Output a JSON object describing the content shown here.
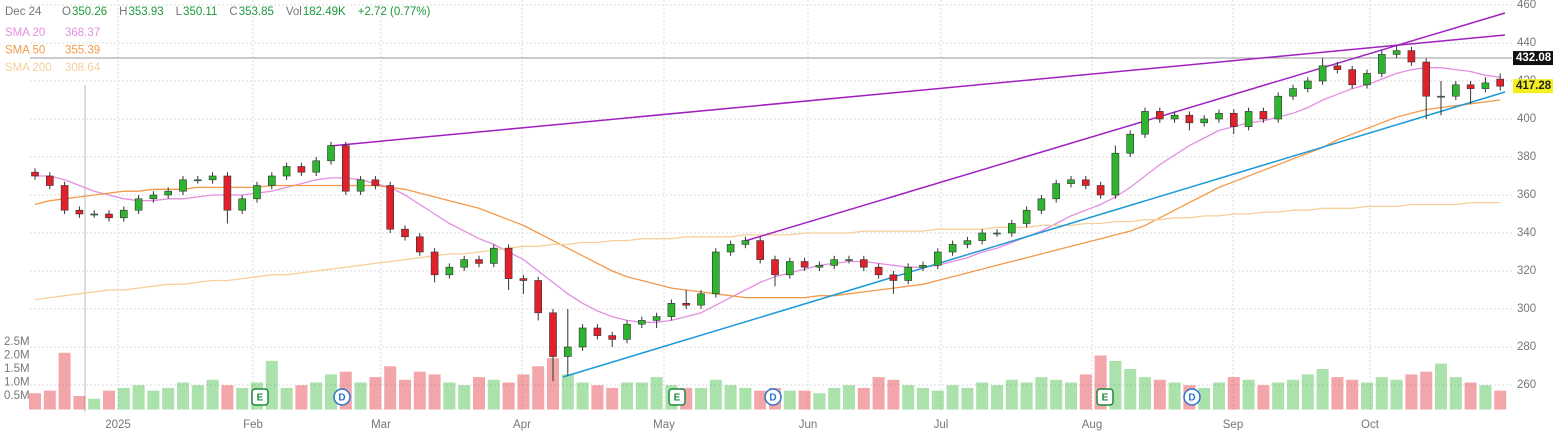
{
  "chart_data": {
    "type": "candlestick",
    "header": [
      {
        "label": "O",
        "value": "350.26"
      },
      {
        "label": "H",
        "value": "353.93"
      },
      {
        "label": "L",
        "value": "350.11"
      },
      {
        "label": "C",
        "value": "353.85"
      },
      {
        "label": "Vol",
        "value": "182.49K"
      }
    ],
    "header_date": "Dec 24",
    "header_change": "+2.72 (0.77%)",
    "up_color": "#2db52d",
    "down_color": "#e0202a",
    "open": [
      372,
      370,
      365,
      352,
      350,
      350,
      348,
      352,
      358,
      360,
      362,
      368,
      368,
      370,
      352,
      358,
      365,
      370,
      375,
      372,
      378,
      386,
      362,
      368,
      365,
      342,
      338,
      330,
      318,
      322,
      326,
      324,
      332,
      316,
      315,
      298,
      275,
      280,
      290,
      286,
      284,
      292,
      294,
      296,
      303,
      302,
      308,
      330,
      334,
      336,
      326,
      318,
      325,
      322,
      323,
      326,
      326,
      322,
      318,
      315,
      322,
      323,
      330,
      334,
      336,
      340,
      340,
      345,
      352,
      358,
      366,
      368,
      365,
      360,
      382,
      392,
      404,
      400,
      402,
      398,
      400,
      403,
      396,
      404,
      400,
      412,
      416,
      420,
      428,
      426,
      418,
      424,
      434,
      436,
      430,
      412,
      412,
      418,
      416,
      421
    ],
    "high": [
      374,
      372,
      367,
      354,
      352,
      352,
      354,
      360,
      362,
      364,
      370,
      370,
      372,
      372,
      360,
      367,
      372,
      377,
      377,
      380,
      388,
      388,
      370,
      370,
      367,
      344,
      340,
      332,
      324,
      328,
      328,
      334,
      334,
      318,
      317,
      300,
      300,
      292,
      292,
      288,
      294,
      296,
      298,
      305,
      310,
      310,
      332,
      336,
      338,
      338,
      328,
      327,
      327,
      325,
      328,
      328,
      328,
      324,
      320,
      324,
      325,
      332,
      336,
      338,
      342,
      342,
      347,
      354,
      360,
      368,
      370,
      370,
      367,
      386,
      394,
      406,
      406,
      404,
      404,
      402,
      405,
      405,
      406,
      406,
      414,
      418,
      422,
      432,
      430,
      428,
      426,
      436,
      439,
      438,
      432,
      420,
      420,
      420,
      422,
      424
    ],
    "low": [
      368,
      363,
      350,
      348,
      348,
      346,
      346,
      350,
      356,
      358,
      360,
      366,
      366,
      345,
      350,
      356,
      363,
      368,
      370,
      370,
      376,
      360,
      360,
      363,
      340,
      336,
      328,
      314,
      316,
      320,
      322,
      322,
      310,
      308,
      294,
      262,
      265,
      278,
      284,
      280,
      282,
      290,
      290,
      294,
      300,
      300,
      306,
      328,
      332,
      324,
      312,
      316,
      320,
      320,
      321,
      324,
      320,
      316,
      308,
      313,
      320,
      321,
      328,
      332,
      334,
      338,
      338,
      343,
      350,
      356,
      364,
      363,
      358,
      358,
      380,
      390,
      398,
      398,
      394,
      396,
      398,
      392,
      394,
      398,
      398,
      410,
      414,
      418,
      424,
      416,
      416,
      422,
      432,
      428,
      400,
      402,
      410,
      408,
      414,
      415
    ],
    "close": [
      370,
      365,
      352,
      350,
      350,
      348,
      352,
      358,
      360,
      362,
      368,
      368,
      370,
      352,
      358,
      365,
      370,
      375,
      372,
      378,
      386,
      362,
      368,
      365,
      342,
      338,
      330,
      318,
      322,
      326,
      324,
      332,
      316,
      315,
      298,
      275,
      280,
      290,
      286,
      284,
      292,
      294,
      296,
      303,
      302,
      308,
      330,
      334,
      336,
      326,
      318,
      325,
      322,
      323,
      326,
      326,
      322,
      318,
      315,
      322,
      323,
      330,
      334,
      336,
      340,
      340,
      345,
      352,
      358,
      366,
      368,
      365,
      360,
      382,
      392,
      404,
      400,
      402,
      398,
      400,
      403,
      396,
      404,
      400,
      412,
      416,
      420,
      428,
      426,
      418,
      424,
      434,
      436,
      430,
      412,
      412,
      418,
      416,
      419,
      417.28
    ],
    "volume": [
      0.6,
      0.7,
      2.1,
      0.5,
      0.4,
      0.7,
      0.8,
      0.9,
      0.7,
      0.8,
      1.0,
      0.9,
      1.1,
      0.9,
      0.8,
      1.0,
      1.8,
      0.8,
      0.9,
      1.0,
      1.3,
      1.4,
      1.0,
      1.2,
      1.6,
      1.1,
      1.4,
      1.3,
      1.0,
      0.9,
      1.2,
      1.1,
      1.0,
      1.3,
      1.6,
      1.9,
      1.3,
      1.0,
      0.9,
      0.8,
      1.0,
      1.0,
      1.2,
      0.9,
      0.8,
      0.8,
      1.1,
      0.9,
      0.8,
      0.7,
      0.8,
      0.7,
      0.7,
      0.6,
      0.8,
      0.9,
      0.8,
      1.2,
      1.1,
      0.9,
      0.8,
      0.7,
      0.9,
      0.8,
      1.0,
      0.9,
      1.1,
      1.0,
      1.2,
      1.1,
      1.0,
      1.3,
      2.0,
      1.8,
      1.5,
      1.2,
      1.1,
      1.0,
      0.9,
      0.8,
      1.0,
      1.2,
      1.1,
      0.9,
      1.0,
      1.1,
      1.3,
      1.5,
      1.2,
      1.1,
      1.0,
      1.2,
      1.1,
      1.3,
      1.4,
      1.7,
      1.2,
      1.0,
      0.9,
      0.7
    ],
    "series": [
      {
        "name": "SMA 20",
        "legend_value": "368.37",
        "color": "#e58fe0",
        "values": [
          370,
          370,
          368,
          365,
          362,
          360,
          358,
          357,
          357,
          358,
          358,
          359,
          360,
          360,
          360,
          361,
          362,
          364,
          366,
          368,
          369,
          369,
          368,
          366,
          364,
          360,
          355,
          350,
          345,
          341,
          337,
          334,
          330,
          326,
          320,
          314,
          308,
          303,
          299,
          296,
          294,
          293,
          293,
          294,
          296,
          298,
          302,
          306,
          310,
          314,
          317,
          319,
          321,
          323,
          324,
          325,
          325,
          324,
          323,
          322,
          322,
          323,
          325,
          327,
          330,
          332,
          335,
          338,
          341,
          345,
          349,
          352,
          355,
          359,
          364,
          370,
          376,
          381,
          386,
          390,
          394,
          396,
          398,
          399,
          401,
          403,
          406,
          410,
          413,
          416,
          418,
          421,
          424,
          426,
          427,
          427,
          426,
          425,
          423,
          422
        ]
      },
      {
        "name": "SMA 50",
        "legend_value": "355.39",
        "color": "#f39a4a",
        "values": [
          355,
          357,
          358,
          359,
          360,
          361,
          362,
          362,
          363,
          363,
          363,
          364,
          364,
          364,
          364,
          364,
          365,
          365,
          365,
          365,
          365,
          365,
          365,
          365,
          364,
          363,
          361,
          359,
          357,
          355,
          353,
          350,
          347,
          344,
          340,
          336,
          332,
          328,
          324,
          320,
          317,
          315,
          313,
          311,
          310,
          309,
          308,
          307,
          306,
          306,
          306,
          306,
          306,
          307,
          307,
          308,
          309,
          310,
          311,
          312,
          313,
          315,
          317,
          319,
          321,
          323,
          325,
          327,
          329,
          331,
          333,
          335,
          337,
          339,
          341,
          344,
          348,
          352,
          356,
          360,
          364,
          367,
          370,
          373,
          376,
          379,
          382,
          385,
          389,
          392,
          395,
          398,
          401,
          403,
          405,
          406,
          407,
          408,
          409,
          410
        ]
      },
      {
        "name": "SMA 200",
        "legend_value": "308.64",
        "color": "#f7cf9a",
        "values": [
          305,
          306,
          307,
          308,
          309,
          310,
          310,
          311,
          312,
          313,
          313,
          314,
          315,
          315,
          316,
          317,
          318,
          318,
          319,
          320,
          321,
          322,
          323,
          324,
          325,
          326,
          327,
          328,
          329,
          329,
          330,
          331,
          332,
          333,
          333,
          334,
          334,
          335,
          335,
          336,
          336,
          337,
          337,
          337,
          338,
          338,
          338,
          338,
          339,
          339,
          339,
          339,
          340,
          340,
          340,
          340,
          341,
          341,
          341,
          341,
          341,
          342,
          342,
          342,
          342,
          343,
          343,
          343,
          344,
          344,
          344,
          345,
          345,
          346,
          346,
          347,
          347,
          348,
          348,
          349,
          349,
          350,
          350,
          351,
          351,
          352,
          352,
          353,
          353,
          353,
          354,
          354,
          354,
          355,
          355,
          355,
          355,
          356,
          356,
          356
        ]
      }
    ],
    "ylim": [
      250,
      462.6
    ],
    "yticks": [
      260,
      280,
      300,
      320,
      340,
      360,
      380,
      400,
      420,
      440,
      460
    ],
    "grid": true,
    "volume_ylim": [
      0,
      2.8
    ],
    "volume_ticks": [
      {
        "value": 0.5,
        "label": "0.5M"
      },
      {
        "value": 1.0,
        "label": "1.0M"
      },
      {
        "value": 1.5,
        "label": "1.5M"
      },
      {
        "value": 2.0,
        "label": "2.0M"
      },
      {
        "value": 2.5,
        "label": "2.5M"
      }
    ],
    "reference_price": 432.08,
    "last_price": 417.28,
    "months": [
      "2025",
      "Feb",
      "Mar",
      "Apr",
      "May",
      "Jun",
      "Jul",
      "Aug",
      "Sep",
      "Oct"
    ],
    "events": [
      "E",
      "D",
      "E",
      "D",
      "E",
      "D"
    ]
  }
}
